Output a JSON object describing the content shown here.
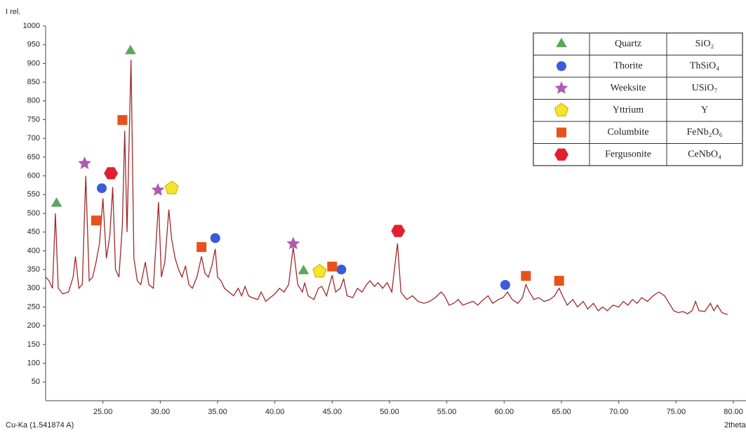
{
  "chart_data": {
    "type": "line",
    "y_axis_label": "I rel.",
    "x_source_label": "Cu-Ka (1.541874 A)",
    "x_axis_label": "2theta",
    "color": "#a0282a",
    "xlim": [
      20,
      80
    ],
    "ylim": [
      0,
      1000
    ],
    "xticks": [
      {
        "value": 25,
        "label": "25.00"
      },
      {
        "value": 30,
        "label": "30.00"
      },
      {
        "value": 35,
        "label": "35.00"
      },
      {
        "value": 40,
        "label": "40.00"
      },
      {
        "value": 45,
        "label": "45.00"
      },
      {
        "value": 50,
        "label": "50.00"
      },
      {
        "value": 55,
        "label": "55.00"
      },
      {
        "value": 60,
        "label": "60.00"
      },
      {
        "value": 65,
        "label": "65.00"
      },
      {
        "value": 70,
        "label": "70.00"
      },
      {
        "value": 75,
        "label": "75.00"
      },
      {
        "value": 80,
        "label": "80.00"
      }
    ],
    "yticks": [
      50,
      100,
      150,
      200,
      250,
      300,
      350,
      400,
      450,
      500,
      550,
      600,
      650,
      700,
      750,
      800,
      850,
      900,
      950,
      1000
    ],
    "x": [
      20.0,
      20.3,
      20.6,
      20.85,
      21.1,
      21.5,
      22.0,
      22.4,
      22.6,
      22.9,
      23.2,
      23.5,
      23.8,
      24.1,
      24.4,
      24.7,
      25.0,
      25.3,
      25.6,
      25.85,
      26.1,
      26.4,
      26.7,
      26.9,
      27.1,
      27.45,
      27.7,
      28.0,
      28.3,
      28.7,
      29.0,
      29.4,
      29.85,
      30.1,
      30.4,
      30.75,
      31.0,
      31.3,
      31.6,
      31.9,
      32.2,
      32.5,
      32.8,
      33.2,
      33.6,
      33.9,
      34.2,
      34.5,
      34.8,
      35.0,
      35.3,
      35.6,
      36.0,
      36.4,
      36.8,
      37.1,
      37.4,
      37.7,
      38.0,
      38.5,
      38.8,
      39.2,
      39.6,
      40.0,
      40.4,
      40.8,
      41.2,
      41.6,
      42.0,
      42.4,
      42.6,
      42.9,
      43.4,
      43.8,
      44.1,
      44.5,
      45.0,
      45.3,
      45.7,
      46.0,
      46.3,
      46.8,
      47.2,
      47.6,
      48.0,
      48.3,
      48.7,
      49.0,
      49.4,
      49.8,
      50.2,
      50.7,
      51.0,
      51.5,
      52.0,
      52.5,
      53.0,
      53.5,
      54.0,
      54.5,
      54.8,
      55.2,
      55.6,
      56.0,
      56.4,
      56.8,
      57.3,
      57.7,
      58.2,
      58.6,
      59.0,
      59.5,
      59.9,
      60.3,
      60.7,
      61.2,
      61.6,
      61.9,
      62.2,
      62.6,
      63.0,
      63.5,
      64.0,
      64.4,
      64.8,
      65.1,
      65.5,
      66.0,
      66.4,
      66.9,
      67.3,
      67.8,
      68.2,
      68.6,
      69.0,
      69.5,
      70.0,
      70.4,
      70.8,
      71.2,
      71.6,
      72.0,
      72.5,
      73.0,
      73.5,
      74.0,
      74.4,
      74.8,
      75.2,
      75.6,
      76.0,
      76.4,
      76.7,
      77.0,
      77.5,
      78.0,
      78.3,
      78.6,
      79.0,
      79.5
    ],
    "values": [
      330,
      320,
      300,
      500,
      300,
      285,
      290,
      330,
      385,
      300,
      310,
      600,
      320,
      330,
      370,
      420,
      540,
      380,
      440,
      570,
      350,
      330,
      470,
      720,
      450,
      910,
      380,
      320,
      310,
      370,
      310,
      300,
      530,
      330,
      370,
      510,
      430,
      380,
      350,
      330,
      360,
      310,
      300,
      330,
      385,
      340,
      330,
      360,
      405,
      330,
      320,
      300,
      290,
      280,
      300,
      280,
      305,
      280,
      275,
      270,
      290,
      265,
      275,
      285,
      300,
      290,
      310,
      410,
      310,
      290,
      315,
      280,
      270,
      300,
      305,
      280,
      335,
      290,
      300,
      325,
      280,
      275,
      300,
      290,
      310,
      320,
      305,
      315,
      300,
      315,
      290,
      420,
      290,
      270,
      280,
      265,
      260,
      265,
      275,
      290,
      280,
      255,
      260,
      270,
      255,
      260,
      265,
      255,
      270,
      280,
      260,
      270,
      275,
      290,
      270,
      260,
      275,
      310,
      290,
      270,
      275,
      265,
      270,
      280,
      300,
      280,
      255,
      270,
      250,
      265,
      245,
      260,
      240,
      250,
      240,
      255,
      250,
      265,
      255,
      270,
      260,
      275,
      265,
      280,
      290,
      280,
      260,
      240,
      235,
      238,
      232,
      240,
      265,
      240,
      238,
      260,
      240,
      255,
      235,
      230
    ],
    "phases": [
      {
        "name": "Quartz",
        "formula": "SiO₂",
        "color": "#5aa85a",
        "shape": "triangle",
        "x": [
          20.95,
          27.4,
          42.5
        ],
        "y": [
          526,
          933,
          346
        ]
      },
      {
        "name": "Thorite",
        "formula": "ThSiO₄",
        "color": "#3b5bdb",
        "shape": "circle",
        "x": [
          24.9,
          34.8,
          45.8,
          60.1
        ],
        "y": [
          567,
          434,
          350,
          309
        ]
      },
      {
        "name": "Weeksite",
        "formula": "USiO₇",
        "color": "#b05ab0",
        "shape": "star",
        "x": [
          23.4,
          29.8,
          41.6
        ],
        "y": [
          633,
          562,
          419
        ]
      },
      {
        "name": "Yttrium",
        "formula": "Y",
        "color": "#f5e52a",
        "shape": "pentagon",
        "x": [
          31.0,
          43.9
        ],
        "y": [
          567,
          345
        ]
      },
      {
        "name": "Columbite",
        "formula": "FeNb₂O₆",
        "color": "#e8521a",
        "shape": "square",
        "x": [
          24.4,
          26.7,
          33.6,
          45.0,
          61.9,
          64.8
        ],
        "y": [
          481,
          749,
          410,
          358,
          333,
          320
        ]
      },
      {
        "name": "Fergusonite",
        "formula": "CeNbO₄",
        "color": "#e02030",
        "shape": "hexagon",
        "x": [
          25.7,
          50.75
        ],
        "y": [
          607,
          453
        ]
      }
    ]
  }
}
